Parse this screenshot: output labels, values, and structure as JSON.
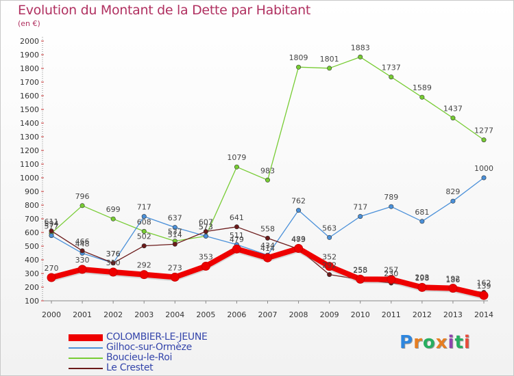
{
  "title": "Evolution du Montant de la Dette par Habitant",
  "unit": "(en €)",
  "logo": "Proxiti",
  "colors": {
    "title": "#b03060",
    "axis": "#777777",
    "grid": "#d8d8d8"
  },
  "chart_data": {
    "type": "line",
    "x": [
      2000,
      2001,
      2002,
      2003,
      2004,
      2005,
      2006,
      2007,
      2008,
      2009,
      2010,
      2011,
      2012,
      2013,
      2014
    ],
    "ylim": [
      100,
      2000
    ],
    "yticks": [
      100,
      200,
      300,
      400,
      500,
      600,
      700,
      800,
      900,
      1000,
      1100,
      1200,
      1300,
      1400,
      1500,
      1600,
      1700,
      1800,
      1900,
      2000
    ],
    "grid": false,
    "legend": "bottom-left",
    "series": [
      {
        "name": "COLOMBIER-LE-JEUNE",
        "color": "#ee0000",
        "values": [
          270,
          330,
          310,
          292,
          273,
          353,
          479,
          414,
          483,
          352,
          258,
          257,
          198,
          192,
          139
        ]
      },
      {
        "name": "Gilhoc-sur-Ormèze",
        "color": "#4a90d9",
        "values": [
          577,
          448,
          376,
          717,
          637,
          573,
          511,
          434,
          762,
          563,
          717,
          789,
          681,
          829,
          1000
        ]
      },
      {
        "name": "Boucieu-le-Roi",
        "color": "#77cc33",
        "values": [
          594,
          796,
          699,
          608,
          537,
          573,
          1079,
          983,
          1809,
          1801,
          1883,
          1737,
          1589,
          1437,
          1277
        ]
      },
      {
        "name": "Le Crestet",
        "color": "#6b1a1a",
        "values": [
          611,
          466,
          376,
          502,
          514,
          607,
          641,
          558,
          479,
          292,
          255,
          230,
          203,
          186,
          162
        ]
      }
    ]
  }
}
